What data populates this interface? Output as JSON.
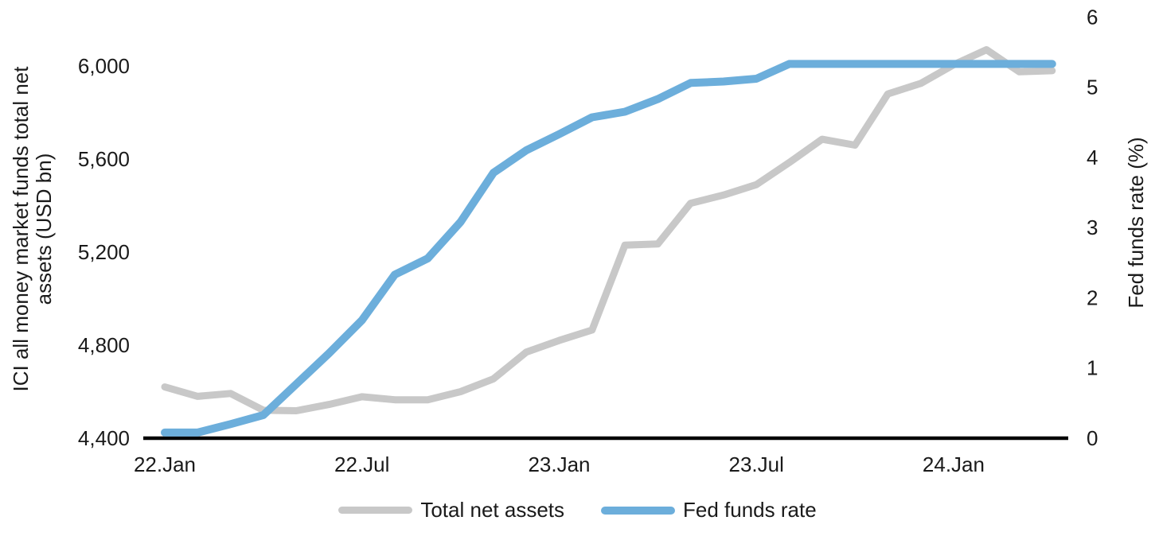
{
  "chart_data": {
    "type": "line",
    "title": "",
    "grid": false,
    "legend_position": "bottom",
    "x_categories": [
      "22.Jan",
      "22.Feb",
      "22.Mar",
      "22.Apr",
      "22.May",
      "22.Jun",
      "22.Jul",
      "22.Aug",
      "22.Sep",
      "22.Oct",
      "22.Nov",
      "22.Dec",
      "23.Jan",
      "23.Feb",
      "23.Mar",
      "23.Apr",
      "23.May",
      "23.Jun",
      "23.Jul",
      "23.Aug",
      "23.Sep",
      "23.Oct",
      "23.Nov",
      "23.Dec",
      "24.Jan",
      "24.Feb",
      "24.Mar",
      "24.Apr"
    ],
    "x_axis": {
      "tick_labels": [
        "22.Jan",
        "22.Jul",
        "23.Jan",
        "23.Jul",
        "24.Jan"
      ],
      "tick_indices": [
        0,
        6,
        12,
        18,
        24
      ]
    },
    "left_axis": {
      "label": "ICI all money market funds total net assets (USD bn)",
      "label_lines": [
        "ICI all money market funds total net",
        "assets (USD bn)"
      ],
      "tick_labels": [
        "4,400",
        "4,800",
        "5,200",
        "5,600",
        "6,000"
      ],
      "tick_values": [
        4400,
        4800,
        5200,
        5600,
        6000
      ],
      "range": [
        4400,
        6000
      ]
    },
    "right_axis": {
      "label": "Fed funds rate (%)",
      "tick_labels": [
        "0",
        "1",
        "2",
        "3",
        "4",
        "5",
        "6"
      ],
      "tick_values": [
        0,
        1,
        2,
        3,
        4,
        5,
        6
      ],
      "range": [
        0,
        6
      ]
    },
    "series": [
      {
        "name": "Total net assets",
        "axis": "left",
        "color": "#c8c8c8",
        "line_width": 9,
        "values": [
          4620,
          4580,
          4592,
          4520,
          4518,
          4545,
          4578,
          4565,
          4565,
          4600,
          4655,
          4770,
          4820,
          4865,
          5230,
          5235,
          5410,
          5445,
          5490,
          5585,
          5685,
          5660,
          5880,
          5925,
          6005,
          6070,
          5975,
          5980
        ]
      },
      {
        "name": "Fed funds rate",
        "axis": "right",
        "color": "#6caedb",
        "line_width": 10,
        "values": [
          0.08,
          0.08,
          0.2,
          0.33,
          0.77,
          1.21,
          1.68,
          2.33,
          2.56,
          3.08,
          3.78,
          4.1,
          4.33,
          4.57,
          4.65,
          4.83,
          5.06,
          5.08,
          5.12,
          5.33,
          5.33,
          5.33,
          5.33,
          5.33,
          5.33,
          5.33,
          5.33,
          5.33
        ]
      }
    ]
  },
  "colors": {
    "axis_line": "#000000",
    "text": "#1a1a1a",
    "background": "#ffffff"
  }
}
